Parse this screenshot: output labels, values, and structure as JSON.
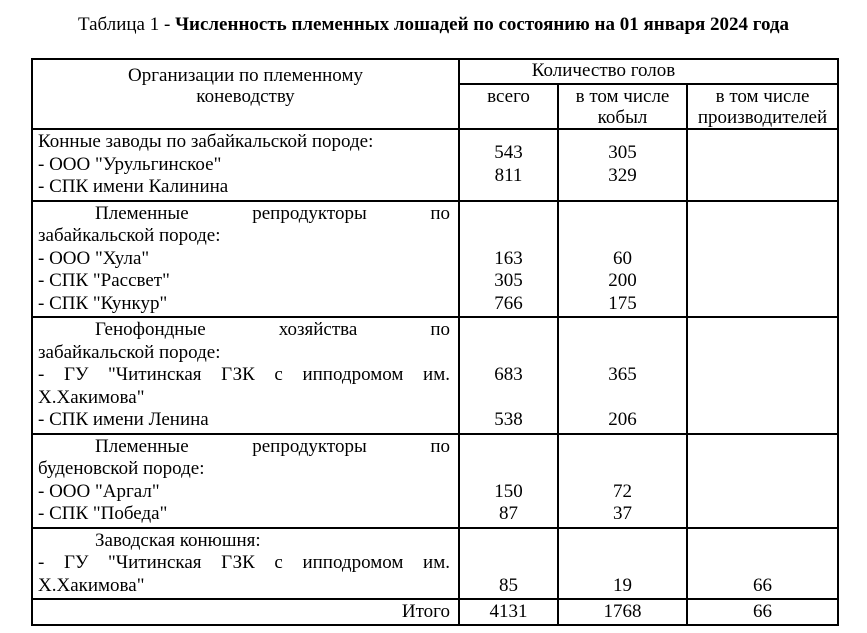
{
  "colors": {
    "text": "#000000",
    "background": "#ffffff",
    "border": "#000000"
  },
  "title": {
    "prefix": "Таблица 1 - ",
    "main": "Численность племенных лошадей по состоянию на 01 января 2024 года"
  },
  "table": {
    "header": {
      "org_lines": [
        "Организации по племенному",
        "коневодству"
      ],
      "group": "Количество голов",
      "cols": [
        "всего",
        "в том числе кобыл",
        "в том числе производителей"
      ]
    },
    "blocks": [
      {
        "lines": [
          {
            "text": "Конные заводы по забайкальской породе:",
            "align": "left"
          },
          {
            "text": "- ООО \"Урульгинское\"",
            "align": "left"
          },
          {
            "text": "- СПК имени Калинина",
            "align": "left"
          }
        ],
        "total": [
          "543",
          "811"
        ],
        "mares": [
          "305",
          "329"
        ],
        "sires": []
      },
      {
        "lines": [
          {
            "text": "Племенные репродукторы по",
            "align": "indent-justify"
          },
          {
            "text": "забайкальской породе:",
            "align": "left"
          },
          {
            "text": "- ООО \"Хула\"",
            "align": "left"
          },
          {
            "text": "- СПК \"Рассвет\"",
            "align": "left"
          },
          {
            "text": "- СПК \"Кункур\"",
            "align": "left"
          }
        ],
        "total": [
          "",
          "",
          "163",
          "305",
          "766"
        ],
        "mares": [
          "",
          "",
          "60",
          "200",
          "175"
        ],
        "sires": []
      },
      {
        "lines": [
          {
            "text": "Генофондные хозяйства по",
            "align": "indent-justify"
          },
          {
            "text": "забайкальской породе:",
            "align": "left"
          },
          {
            "text": "- ГУ \"Читинская ГЗК с ипподромом им.",
            "align": "justify"
          },
          {
            "text": "Х.Хакимова\"",
            "align": "left"
          },
          {
            "text": "- СПК имени Ленина",
            "align": "left"
          }
        ],
        "total": [
          "",
          "",
          "683",
          "",
          "538"
        ],
        "mares": [
          "",
          "",
          "365",
          "",
          "206"
        ],
        "sires": []
      },
      {
        "lines": [
          {
            "text": "Племенные репродукторы по",
            "align": "indent-justify"
          },
          {
            "text": "буденовской породе:",
            "align": "left"
          },
          {
            "text": "- ООО \"Аргал\"",
            "align": "left"
          },
          {
            "text": "- СПК \"Победа\"",
            "align": "left"
          }
        ],
        "total": [
          "",
          "",
          "150",
          "87"
        ],
        "mares": [
          "",
          "",
          "72",
          "37"
        ],
        "sires": []
      },
      {
        "lines": [
          {
            "text": "Заводская конюшня:",
            "align": "indent"
          },
          {
            "text": "- ГУ \"Читинская ГЗК с ипподромом им.",
            "align": "justify"
          },
          {
            "text": "Х.Хакимова\"",
            "align": "left"
          }
        ],
        "total": [
          "",
          "",
          "85"
        ],
        "mares": [
          "",
          "",
          "19"
        ],
        "sires": [
          "",
          "",
          "66"
        ]
      }
    ],
    "footer": {
      "label": "Итого",
      "total": "4131",
      "mares": "1768",
      "sires": "66"
    }
  }
}
